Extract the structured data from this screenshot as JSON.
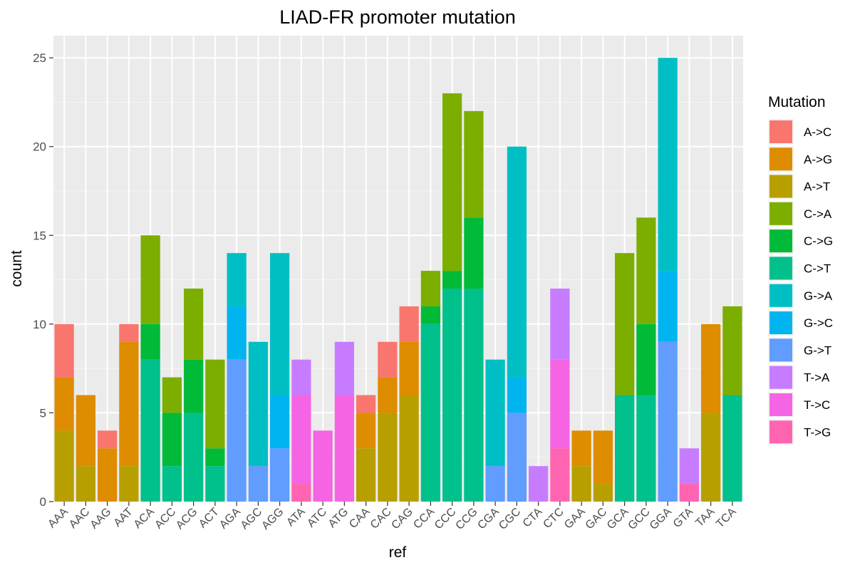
{
  "chart_data": {
    "type": "bar",
    "stacked": true,
    "title": "LIAD-FR promoter mutation",
    "xlabel": "ref",
    "ylabel": "count",
    "ylim": [
      0,
      26.25
    ],
    "yticks": [
      0,
      5,
      10,
      15,
      20,
      25
    ],
    "grid": true,
    "legend": {
      "title": "Mutation",
      "position": "right"
    },
    "categories": [
      "AAA",
      "AAC",
      "AAG",
      "AAT",
      "ACA",
      "ACC",
      "ACG",
      "ACT",
      "AGA",
      "AGC",
      "AGG",
      "ATA",
      "ATC",
      "ATG",
      "CAA",
      "CAC",
      "CAG",
      "CCA",
      "CCC",
      "CCG",
      "CGA",
      "CGC",
      "CTA",
      "CTC",
      "GAA",
      "GAC",
      "GCA",
      "GCC",
      "GGA",
      "GTA",
      "TAA",
      "TCA"
    ],
    "series": [
      {
        "name": "A->C",
        "color": "#F8766D",
        "values": [
          3,
          0,
          1,
          1,
          0,
          0,
          0,
          0,
          0,
          0,
          0,
          0,
          0,
          0,
          1,
          2,
          2,
          0,
          0,
          0,
          0,
          0,
          0,
          0,
          0,
          0,
          0,
          0,
          0,
          0,
          0,
          0
        ]
      },
      {
        "name": "A->G",
        "color": "#DE8C00",
        "values": [
          3,
          4,
          3,
          7,
          0,
          0,
          0,
          0,
          0,
          0,
          0,
          0,
          0,
          0,
          2,
          2,
          3,
          0,
          0,
          0,
          0,
          0,
          0,
          0,
          2,
          3,
          0,
          0,
          0,
          0,
          5,
          0
        ]
      },
      {
        "name": "A->T",
        "color": "#B79F00",
        "values": [
          4,
          2,
          0,
          2,
          0,
          0,
          0,
          0,
          0,
          0,
          0,
          0,
          0,
          0,
          3,
          5,
          6,
          0,
          0,
          0,
          0,
          0,
          0,
          0,
          2,
          1,
          0,
          0,
          0,
          0,
          5,
          0
        ]
      },
      {
        "name": "C->A",
        "color": "#7CAE00",
        "values": [
          0,
          0,
          0,
          0,
          5,
          2,
          4,
          5,
          0,
          0,
          0,
          0,
          0,
          0,
          0,
          0,
          0,
          2,
          10,
          6,
          0,
          0,
          0,
          0,
          0,
          0,
          8,
          6,
          0,
          0,
          0,
          5
        ]
      },
      {
        "name": "C->G",
        "color": "#00BA38",
        "values": [
          0,
          0,
          0,
          0,
          2,
          3,
          3,
          1,
          0,
          0,
          0,
          0,
          0,
          0,
          0,
          0,
          0,
          1,
          1,
          4,
          0,
          0,
          0,
          0,
          0,
          0,
          0,
          4,
          0,
          0,
          0,
          0
        ]
      },
      {
        "name": "C->T",
        "color": "#00C08B",
        "values": [
          0,
          0,
          0,
          0,
          8,
          2,
          5,
          2,
          0,
          0,
          0,
          0,
          0,
          0,
          0,
          0,
          0,
          10,
          12,
          12,
          0,
          0,
          0,
          0,
          0,
          0,
          6,
          6,
          0,
          0,
          0,
          6
        ]
      },
      {
        "name": "G->A",
        "color": "#00BFC4",
        "values": [
          0,
          0,
          0,
          0,
          0,
          0,
          0,
          0,
          3,
          7,
          8,
          0,
          0,
          0,
          0,
          0,
          0,
          0,
          0,
          0,
          6,
          13,
          0,
          0,
          0,
          0,
          0,
          0,
          12,
          0,
          0,
          0
        ]
      },
      {
        "name": "G->C",
        "color": "#00B4F0",
        "values": [
          0,
          0,
          0,
          0,
          0,
          0,
          0,
          0,
          3,
          0,
          3,
          0,
          0,
          0,
          0,
          0,
          0,
          0,
          0,
          0,
          0,
          2,
          0,
          0,
          0,
          0,
          0,
          0,
          4,
          0,
          0,
          0
        ]
      },
      {
        "name": "G->T",
        "color": "#619CFF",
        "values": [
          0,
          0,
          0,
          0,
          0,
          0,
          0,
          0,
          8,
          2,
          3,
          0,
          0,
          0,
          0,
          0,
          0,
          0,
          0,
          0,
          2,
          5,
          0,
          0,
          0,
          0,
          0,
          0,
          9,
          0,
          0,
          0
        ]
      },
      {
        "name": "T->A",
        "color": "#C77CFF",
        "values": [
          0,
          0,
          0,
          0,
          0,
          0,
          0,
          0,
          0,
          0,
          0,
          2,
          0,
          3,
          0,
          0,
          0,
          0,
          0,
          0,
          0,
          0,
          2,
          4,
          0,
          0,
          0,
          0,
          0,
          2,
          0,
          0
        ]
      },
      {
        "name": "T->C",
        "color": "#F564E3",
        "values": [
          0,
          0,
          0,
          0,
          0,
          0,
          0,
          0,
          0,
          0,
          0,
          5,
          4,
          6,
          0,
          0,
          0,
          0,
          0,
          0,
          0,
          0,
          0,
          5,
          0,
          0,
          0,
          0,
          0,
          0,
          0,
          0
        ]
      },
      {
        "name": "T->G",
        "color": "#FF64B0",
        "values": [
          0,
          0,
          0,
          0,
          0,
          0,
          0,
          0,
          0,
          0,
          0,
          1,
          0,
          0,
          0,
          0,
          0,
          0,
          0,
          0,
          0,
          0,
          0,
          3,
          0,
          0,
          0,
          0,
          0,
          1,
          0,
          0
        ]
      }
    ]
  }
}
